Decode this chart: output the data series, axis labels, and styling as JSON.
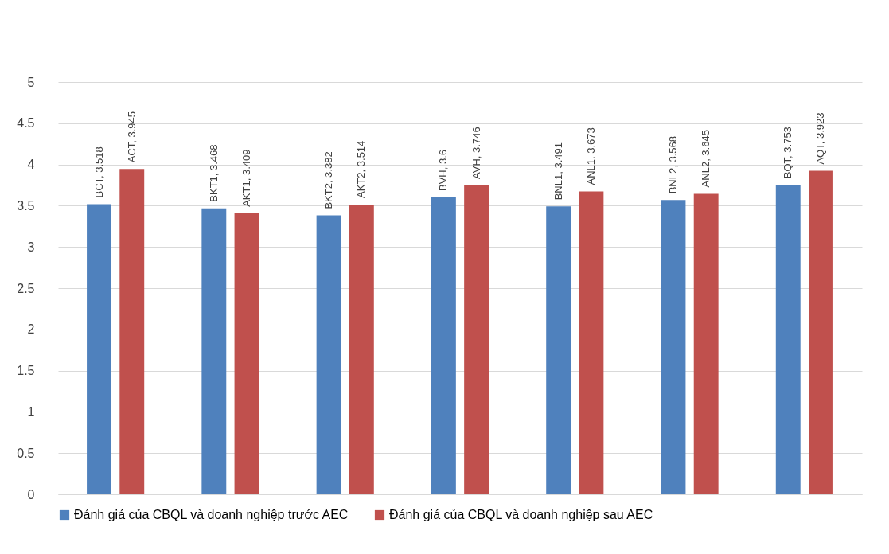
{
  "chart_data": {
    "type": "bar",
    "categories": [
      null,
      null,
      null,
      null,
      null,
      null,
      null
    ],
    "series": [
      {
        "name": "Đánh giá của CBQL và doanh nghiệp trước AEC",
        "color": "#4f81bd",
        "values": [
          3.518,
          3.468,
          3.382,
          3.6,
          3.491,
          3.568,
          3.753
        ],
        "value_labels": [
          "BCT, 3.518",
          "BKT1, 3.468",
          "BKT2, 3.382",
          "BVH, 3.6",
          "BNL1, 3.491",
          "BNL2, 3.568",
          "BQT, 3.753"
        ]
      },
      {
        "name": "Đánh giá của CBQL và doanh nghiệp sau AEC",
        "color": "#c0504d",
        "values": [
          3.945,
          3.409,
          3.514,
          3.746,
          3.673,
          3.645,
          3.923
        ],
        "value_labels": [
          "ACT, 3.945",
          "AKT1, 3.409",
          "AKT2, 3.514",
          "AVH, 3.746",
          "ANL1, 3.673",
          "ANL2, 3.645",
          "AQT, 3.923"
        ]
      }
    ],
    "ylim": [
      0,
      5
    ],
    "yticks": [
      0,
      0.5,
      1,
      1.5,
      2,
      2.5,
      3,
      3.5,
      4,
      4.5,
      5
    ],
    "grid": "y",
    "legend": "bottom",
    "tick_labels": "y"
  }
}
